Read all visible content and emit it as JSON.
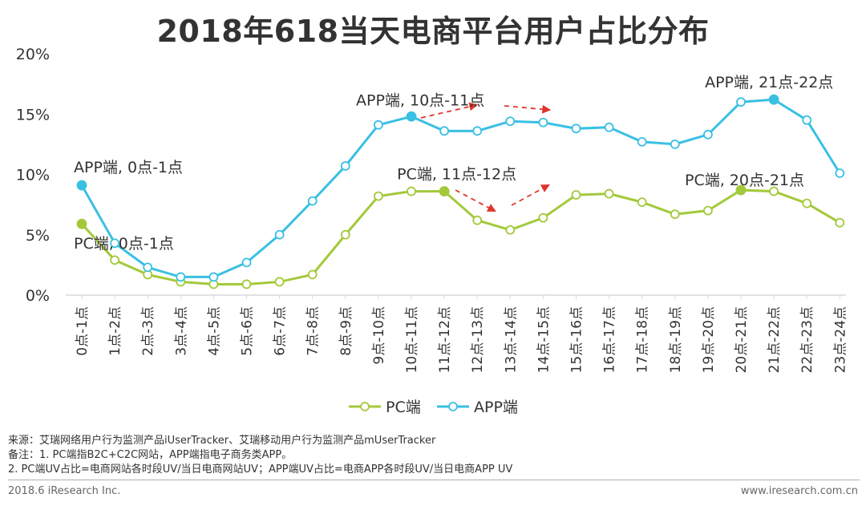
{
  "colors": {
    "pc": "#a3c93a",
    "app": "#39c0e3",
    "arrow": "#e0352b",
    "axis": "#d9d9d9",
    "text": "#333333"
  },
  "chart_data": {
    "type": "line",
    "title": "2018年618当天电商平台用户占比分布",
    "xlabel": "",
    "ylabel": "",
    "ylim": [
      0,
      20
    ],
    "yticks": [
      "0%",
      "5%",
      "10%",
      "15%",
      "20%"
    ],
    "grid": false,
    "legend_position": "bottom",
    "categories": [
      "0点-1点",
      "1点-2点",
      "2点-3点",
      "3点-4点",
      "4点-5点",
      "5点-6点",
      "6点-7点",
      "7点-8点",
      "8点-9点",
      "9点-10点",
      "10点-11点",
      "11点-12点",
      "12点-13点",
      "13点-14点",
      "14点-15点",
      "15点-16点",
      "16点-17点",
      "17点-18点",
      "18点-19点",
      "19点-20点",
      "20点-21点",
      "21点-22点",
      "22点-23点",
      "23点-24点"
    ],
    "series": [
      {
        "name": "PC端",
        "values": [
          5.9,
          2.9,
          1.7,
          1.1,
          0.9,
          0.9,
          1.1,
          1.7,
          5.0,
          8.2,
          8.6,
          8.6,
          6.2,
          5.4,
          6.4,
          8.3,
          8.4,
          7.7,
          6.7,
          7.0,
          8.7,
          8.6,
          7.6,
          6.0
        ],
        "highlight": [
          0,
          11,
          20
        ]
      },
      {
        "name": "APP端",
        "values": [
          9.1,
          4.3,
          2.3,
          1.5,
          1.5,
          2.7,
          5.0,
          7.8,
          10.7,
          14.1,
          14.8,
          13.6,
          13.6,
          14.4,
          14.3,
          13.8,
          13.9,
          12.7,
          12.5,
          13.3,
          16.0,
          16.2,
          14.5,
          10.1
        ],
        "highlight": [
          0,
          10,
          21
        ]
      }
    ],
    "annotations": [
      {
        "text": "APP端, 0点-1点",
        "series": 1,
        "index": 0
      },
      {
        "text": "PC端, 0点-1点",
        "series": 0,
        "index": 0
      },
      {
        "text": "APP端, 10点-11点",
        "series": 1,
        "index": 10
      },
      {
        "text": "PC端, 11点-12点",
        "series": 0,
        "index": 11
      },
      {
        "text": "APP端, 21点-22点",
        "series": 1,
        "index": 21
      },
      {
        "text": "PC端, 20点-21点",
        "series": 0,
        "index": 20
      }
    ]
  },
  "notes": {
    "source": "来源：艾瑞网络用户行为监测产品iUserTracker、艾瑞移动用户行为监测产品mUserTracker",
    "remark1": "备注：1. PC端指B2C+C2C网站，APP端指电子商务类APP。",
    "remark2": "2. PC端UV占比=电商网站各时段UV/当日电商网站UV；APP端UV占比=电商APP各时段UV/当日电商APP UV"
  },
  "footer": {
    "left": "2018.6 iResearch Inc.",
    "right": "www.iresearch.com.cn"
  }
}
